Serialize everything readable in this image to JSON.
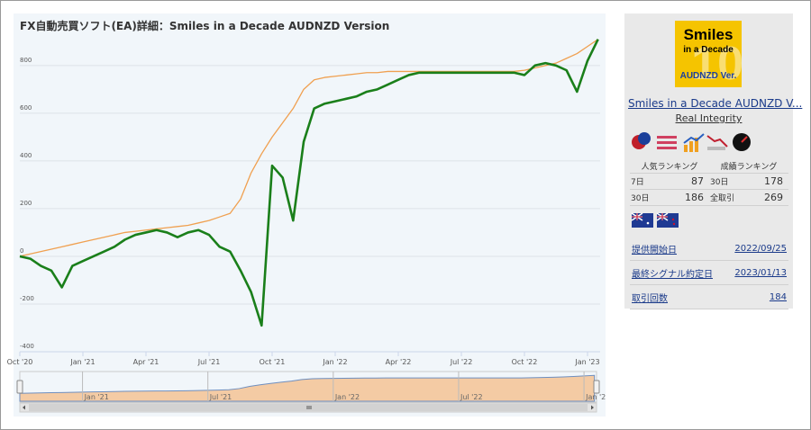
{
  "chart_data": {
    "type": "line",
    "title": "FX自動売買ソフト(EA)詳細：Smiles in a Decade AUDNZD Version",
    "x": [
      0,
      0.5,
      1,
      1.5,
      2,
      2.5,
      3,
      3.5,
      4,
      4.5,
      5,
      5.5,
      6,
      6.5,
      7,
      7.5,
      8,
      8.5,
      9,
      9.5,
      10,
      10.5,
      11,
      11.5,
      12,
      12.5,
      13,
      13.5,
      14,
      14.5,
      15,
      15.5,
      16,
      16.5,
      17,
      17.5,
      18,
      18.5,
      19,
      19.5,
      20,
      20.5,
      21,
      21.5,
      22,
      22.5,
      23,
      23.5,
      24,
      24.5,
      25,
      25.5,
      26,
      26.5,
      27,
      27.5
    ],
    "series": [
      {
        "color": "#f0a050",
        "values": [
          0,
          10,
          20,
          30,
          40,
          50,
          60,
          70,
          80,
          90,
          100,
          105,
          110,
          115,
          120,
          125,
          130,
          140,
          150,
          165,
          180,
          240,
          350,
          430,
          500,
          560,
          620,
          700,
          740,
          750,
          755,
          760,
          765,
          770,
          770,
          775,
          775,
          775,
          775,
          775,
          775,
          775,
          775,
          775,
          775,
          775,
          775,
          775,
          780,
          790,
          800,
          810,
          830,
          850,
          880,
          910
        ]
      },
      {
        "color": "#1a7f1a",
        "values": [
          0,
          -10,
          -40,
          -60,
          -130,
          -40,
          -20,
          0,
          20,
          40,
          70,
          90,
          100,
          110,
          100,
          80,
          100,
          110,
          90,
          40,
          20,
          -60,
          -150,
          -290,
          380,
          330,
          150,
          480,
          620,
          640,
          650,
          660,
          670,
          690,
          700,
          720,
          740,
          760,
          770,
          770,
          770,
          770,
          770,
          770,
          770,
          770,
          770,
          770,
          760,
          800,
          810,
          800,
          780,
          690,
          820,
          910
        ]
      }
    ],
    "xlim": [
      0,
      27.6
    ],
    "xticks": [
      {
        "value": 0,
        "label": "Oct '20"
      },
      {
        "value": 3,
        "label": "Jan '21"
      },
      {
        "value": 6,
        "label": "Apr '21"
      },
      {
        "value": 9,
        "label": "Jul '21"
      },
      {
        "value": 12,
        "label": "Oct '21"
      },
      {
        "value": 15,
        "label": "Jan '22"
      },
      {
        "value": 18,
        "label": "Apr '22"
      },
      {
        "value": 21,
        "label": "Jul '22"
      },
      {
        "value": 24,
        "label": "Oct '22"
      },
      {
        "value": 27,
        "label": "Jan '23"
      }
    ],
    "ylim": [
      -400,
      920
    ],
    "yticks": [
      -400,
      -200,
      0,
      200,
      400,
      600,
      800
    ],
    "grid": true,
    "navigator_xticks": [
      {
        "value": 3,
        "label": "Jan '21"
      },
      {
        "value": 9,
        "label": "Jul '21"
      },
      {
        "value": 15,
        "label": "Jan '22"
      },
      {
        "value": 21,
        "label": "Jul '22"
      },
      {
        "value": 27,
        "label": "Jan '2"
      }
    ]
  },
  "panel": {
    "logo": [
      "Smiles",
      "in a Decade",
      "AUDNZD Ver."
    ],
    "logo_watermark": "10",
    "name_link": "Smiles in a Decade AUDNZD V...",
    "author": "Real Integrity",
    "ranking": {
      "headers": [
        "人気ランキング",
        "成績ランキング"
      ],
      "rows": [
        [
          "7日",
          87,
          "30日",
          178
        ],
        [
          "30日",
          186,
          "全取引",
          269
        ]
      ]
    },
    "info": [
      [
        "提供開始日",
        "2022/09/25"
      ],
      [
        "最終シグナル約定日",
        "2023/01/13"
      ],
      [
        "取引回数",
        "184"
      ]
    ]
  }
}
